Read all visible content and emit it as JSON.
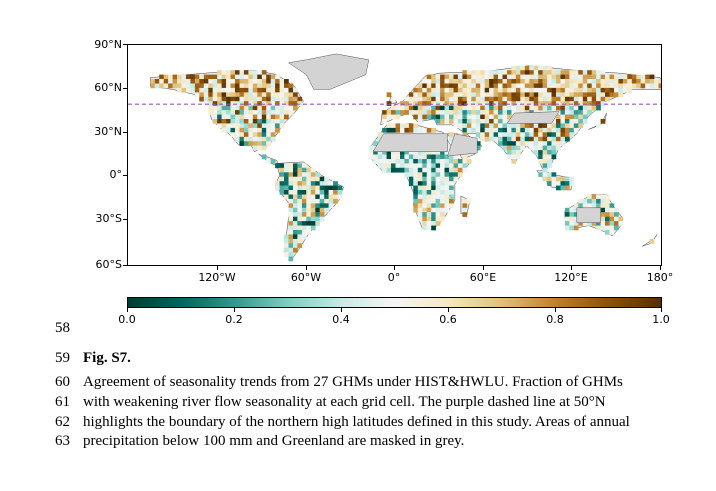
{
  "figure": {
    "map": {
      "lat_ticks": [
        "90°N",
        "60°N",
        "30°N",
        "0°",
        "30°S",
        "60°S"
      ],
      "lon_ticks": [
        "120°W",
        "60°W",
        "0°",
        "60°E",
        "120°E",
        "180°"
      ],
      "reference_line_lat": "50°N",
      "colors": {
        "masked": "#d3d3d3",
        "reference_line": "#9b59b6",
        "low": "#00463c",
        "mid": "#f5f5f5",
        "high": "#7a3b03"
      }
    },
    "colorbar": {
      "ticks": [
        "0.0",
        "0.2",
        "0.4",
        "0.6",
        "0.8",
        "1.0"
      ],
      "range": [
        0.0,
        1.0
      ]
    }
  },
  "caption": {
    "start_line_number": "58",
    "lines": [
      {
        "number": "59",
        "label": "Fig. S7.",
        "text": ""
      },
      {
        "number": "60",
        "label": "",
        "text": "Agreement of seasonality trends from 27 GHMs under HIST&HWLU. Fraction of GHMs"
      },
      {
        "number": "61",
        "label": "",
        "text": "with weakening river flow seasonality at each grid cell. The purple dashed line at 50°N"
      },
      {
        "number": "62",
        "label": "",
        "text": "highlights the boundary of the northern high latitudes defined in this study. Areas of annual"
      },
      {
        "number": "63",
        "label": "",
        "text": "precipitation below 100 mm and Greenland are masked in grey."
      }
    ]
  }
}
